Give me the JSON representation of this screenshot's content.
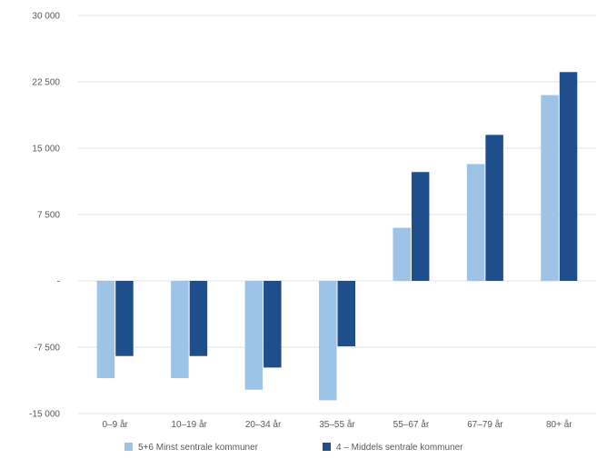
{
  "chart_data": {
    "type": "bar",
    "categories": [
      "0–9 år",
      "10–19 år",
      "20–34 år",
      "35–55 år",
      "55–67 år",
      "67–79 år",
      "80+ år"
    ],
    "series": [
      {
        "name": "5+6 Minst sentrale kommuner",
        "color": "#9dc3e6",
        "values": [
          -11000,
          -11000,
          -12300,
          -13500,
          6000,
          13200,
          21000
        ]
      },
      {
        "name": "4 – Middels sentrale kommuner",
        "color": "#1f4e8c",
        "values": [
          -8500,
          -8500,
          -9800,
          -7400,
          12300,
          16500,
          23600
        ]
      }
    ],
    "ylim": [
      -15000,
      30000
    ],
    "yticks": [
      30000,
      22500,
      15000,
      7500,
      0,
      -7500,
      -15000
    ],
    "ytick_labels": [
      "30 000",
      "22 500",
      "15 000",
      "7 500",
      "-",
      "-7 500",
      "-15 000"
    ],
    "grid": true,
    "legend_position": "bottom",
    "title": "",
    "xlabel": "",
    "ylabel": ""
  }
}
